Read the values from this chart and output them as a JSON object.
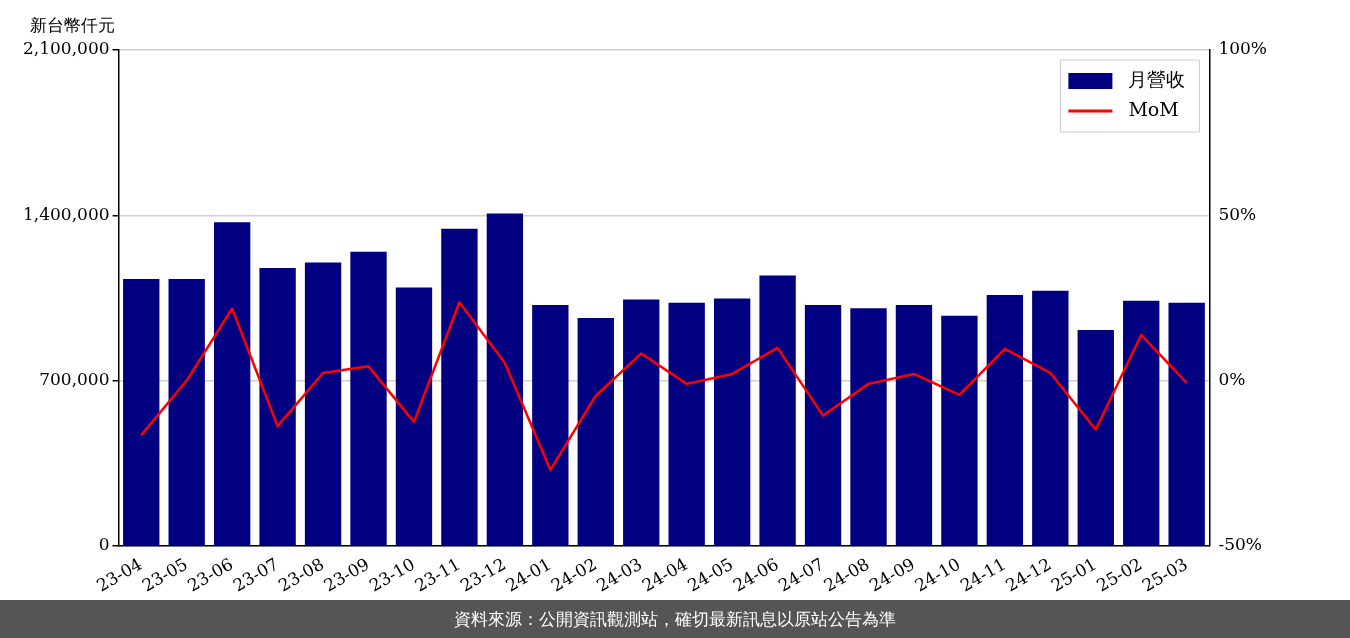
{
  "chart_data": {
    "type": "bar",
    "ylabel": "新台幣仟元",
    "categories": [
      "23-04",
      "23-05",
      "23-06",
      "23-07",
      "23-08",
      "23-09",
      "23-10",
      "23-11",
      "23-12",
      "24-01",
      "24-02",
      "24-03",
      "24-04",
      "24-05",
      "24-06",
      "24-07",
      "24-08",
      "24-09",
      "24-10",
      "24-11",
      "24-12",
      "25-01",
      "25-02",
      "25-03"
    ],
    "series": [
      {
        "name": "月營收",
        "color": "#000080",
        "values": [
          1130000,
          1130000,
          1370000,
          1177000,
          1200000,
          1246000,
          1094000,
          1343000,
          1408000,
          1020000,
          965000,
          1043000,
          1029000,
          1048000,
          1145000,
          1020000,
          1006000,
          1020000,
          974000,
          1062000,
          1080000,
          914000,
          1038000,
          1029000
        ]
      },
      {
        "name": "MoM",
        "type": "line",
        "axis": "y2",
        "color": "#ff0000",
        "values": [
          -16.5,
          0,
          21.8,
          -13.8,
          2.3,
          4.3,
          -12.5,
          23.7,
          5.3,
          -27,
          -4.6,
          8.2,
          -1,
          2,
          9.9,
          -10.6,
          -1,
          2,
          -4.3,
          9.6,
          2.3,
          -14.8,
          13.8,
          -0.7
        ]
      }
    ],
    "ylim": [
      0,
      2100000
    ],
    "yticks": [
      {
        "value": 0,
        "label": "0"
      },
      {
        "value": 700000,
        "label": "700,000"
      },
      {
        "value": 1400000,
        "label": "1,400,000"
      },
      {
        "value": 2100000,
        "label": "2,100,000"
      }
    ],
    "y2lim": [
      -50,
      100
    ],
    "y2ticks": [
      {
        "value": -50,
        "label": "-50%"
      },
      {
        "value": 0,
        "label": "0%"
      },
      {
        "value": 50,
        "label": "50%"
      },
      {
        "value": 100,
        "label": "100%"
      }
    ],
    "grid": "y",
    "legend": "top right",
    "annotations": [
      "資料來源：公開資訊觀測站，確切最新訊息以原站公告為準"
    ]
  }
}
